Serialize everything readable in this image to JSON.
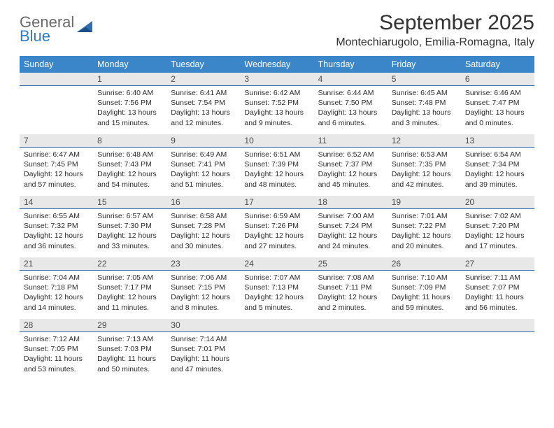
{
  "brand": {
    "name_part1": "General",
    "name_part2": "Blue"
  },
  "title": "September 2025",
  "location": "Montechiarugolo, Emilia-Romagna, Italy",
  "colors": {
    "header_bg": "#3a86c8",
    "header_fg": "#ffffff",
    "daynum_bg": "#e8e8e8",
    "daynum_border": "#2f6aa2",
    "text": "#2c2c2c",
    "logo_gray": "#6b6b6b",
    "logo_blue": "#2e7ec5",
    "page_bg": "#ffffff"
  },
  "weekdays": [
    "Sunday",
    "Monday",
    "Tuesday",
    "Wednesday",
    "Thursday",
    "Friday",
    "Saturday"
  ],
  "weeks": [
    [
      null,
      {
        "n": "1",
        "sr": "Sunrise: 6:40 AM",
        "ss": "Sunset: 7:56 PM",
        "dl": "Daylight: 13 hours and 15 minutes."
      },
      {
        "n": "2",
        "sr": "Sunrise: 6:41 AM",
        "ss": "Sunset: 7:54 PM",
        "dl": "Daylight: 13 hours and 12 minutes."
      },
      {
        "n": "3",
        "sr": "Sunrise: 6:42 AM",
        "ss": "Sunset: 7:52 PM",
        "dl": "Daylight: 13 hours and 9 minutes."
      },
      {
        "n": "4",
        "sr": "Sunrise: 6:44 AM",
        "ss": "Sunset: 7:50 PM",
        "dl": "Daylight: 13 hours and 6 minutes."
      },
      {
        "n": "5",
        "sr": "Sunrise: 6:45 AM",
        "ss": "Sunset: 7:48 PM",
        "dl": "Daylight: 13 hours and 3 minutes."
      },
      {
        "n": "6",
        "sr": "Sunrise: 6:46 AM",
        "ss": "Sunset: 7:47 PM",
        "dl": "Daylight: 13 hours and 0 minutes."
      }
    ],
    [
      {
        "n": "7",
        "sr": "Sunrise: 6:47 AM",
        "ss": "Sunset: 7:45 PM",
        "dl": "Daylight: 12 hours and 57 minutes."
      },
      {
        "n": "8",
        "sr": "Sunrise: 6:48 AM",
        "ss": "Sunset: 7:43 PM",
        "dl": "Daylight: 12 hours and 54 minutes."
      },
      {
        "n": "9",
        "sr": "Sunrise: 6:49 AM",
        "ss": "Sunset: 7:41 PM",
        "dl": "Daylight: 12 hours and 51 minutes."
      },
      {
        "n": "10",
        "sr": "Sunrise: 6:51 AM",
        "ss": "Sunset: 7:39 PM",
        "dl": "Daylight: 12 hours and 48 minutes."
      },
      {
        "n": "11",
        "sr": "Sunrise: 6:52 AM",
        "ss": "Sunset: 7:37 PM",
        "dl": "Daylight: 12 hours and 45 minutes."
      },
      {
        "n": "12",
        "sr": "Sunrise: 6:53 AM",
        "ss": "Sunset: 7:35 PM",
        "dl": "Daylight: 12 hours and 42 minutes."
      },
      {
        "n": "13",
        "sr": "Sunrise: 6:54 AM",
        "ss": "Sunset: 7:34 PM",
        "dl": "Daylight: 12 hours and 39 minutes."
      }
    ],
    [
      {
        "n": "14",
        "sr": "Sunrise: 6:55 AM",
        "ss": "Sunset: 7:32 PM",
        "dl": "Daylight: 12 hours and 36 minutes."
      },
      {
        "n": "15",
        "sr": "Sunrise: 6:57 AM",
        "ss": "Sunset: 7:30 PM",
        "dl": "Daylight: 12 hours and 33 minutes."
      },
      {
        "n": "16",
        "sr": "Sunrise: 6:58 AM",
        "ss": "Sunset: 7:28 PM",
        "dl": "Daylight: 12 hours and 30 minutes."
      },
      {
        "n": "17",
        "sr": "Sunrise: 6:59 AM",
        "ss": "Sunset: 7:26 PM",
        "dl": "Daylight: 12 hours and 27 minutes."
      },
      {
        "n": "18",
        "sr": "Sunrise: 7:00 AM",
        "ss": "Sunset: 7:24 PM",
        "dl": "Daylight: 12 hours and 24 minutes."
      },
      {
        "n": "19",
        "sr": "Sunrise: 7:01 AM",
        "ss": "Sunset: 7:22 PM",
        "dl": "Daylight: 12 hours and 20 minutes."
      },
      {
        "n": "20",
        "sr": "Sunrise: 7:02 AM",
        "ss": "Sunset: 7:20 PM",
        "dl": "Daylight: 12 hours and 17 minutes."
      }
    ],
    [
      {
        "n": "21",
        "sr": "Sunrise: 7:04 AM",
        "ss": "Sunset: 7:18 PM",
        "dl": "Daylight: 12 hours and 14 minutes."
      },
      {
        "n": "22",
        "sr": "Sunrise: 7:05 AM",
        "ss": "Sunset: 7:17 PM",
        "dl": "Daylight: 12 hours and 11 minutes."
      },
      {
        "n": "23",
        "sr": "Sunrise: 7:06 AM",
        "ss": "Sunset: 7:15 PM",
        "dl": "Daylight: 12 hours and 8 minutes."
      },
      {
        "n": "24",
        "sr": "Sunrise: 7:07 AM",
        "ss": "Sunset: 7:13 PM",
        "dl": "Daylight: 12 hours and 5 minutes."
      },
      {
        "n": "25",
        "sr": "Sunrise: 7:08 AM",
        "ss": "Sunset: 7:11 PM",
        "dl": "Daylight: 12 hours and 2 minutes."
      },
      {
        "n": "26",
        "sr": "Sunrise: 7:10 AM",
        "ss": "Sunset: 7:09 PM",
        "dl": "Daylight: 11 hours and 59 minutes."
      },
      {
        "n": "27",
        "sr": "Sunrise: 7:11 AM",
        "ss": "Sunset: 7:07 PM",
        "dl": "Daylight: 11 hours and 56 minutes."
      }
    ],
    [
      {
        "n": "28",
        "sr": "Sunrise: 7:12 AM",
        "ss": "Sunset: 7:05 PM",
        "dl": "Daylight: 11 hours and 53 minutes."
      },
      {
        "n": "29",
        "sr": "Sunrise: 7:13 AM",
        "ss": "Sunset: 7:03 PM",
        "dl": "Daylight: 11 hours and 50 minutes."
      },
      {
        "n": "30",
        "sr": "Sunrise: 7:14 AM",
        "ss": "Sunset: 7:01 PM",
        "dl": "Daylight: 11 hours and 47 minutes."
      },
      null,
      null,
      null,
      null
    ]
  ]
}
